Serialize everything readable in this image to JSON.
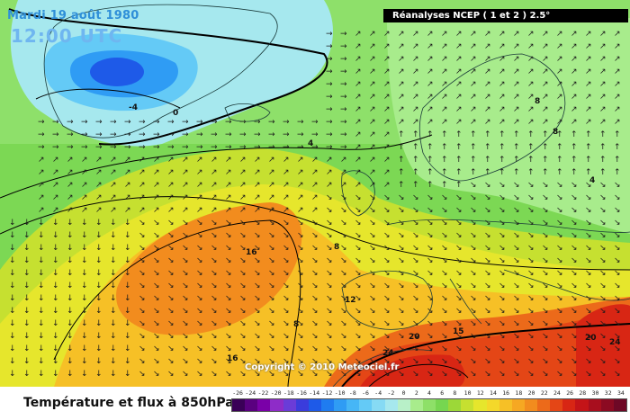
{
  "header": {
    "date": "Mardi 19 août 1980",
    "time": "12:00 UTC",
    "source": "Réanalyses NCEP ( 1 et 2 ) 2.5°"
  },
  "copyright": "Copyright © 2010 Meteociel.fr",
  "contour_labels": [
    "-4",
    "0",
    "4",
    "8",
    "16",
    "16",
    "8",
    "12",
    "20",
    "24",
    "20",
    "24",
    "8",
    "8",
    "4",
    "15",
    "16"
  ],
  "legend": {
    "title": "Température et flux à 850hPa",
    "ticks": [
      "-26",
      "-24",
      "-22",
      "-20",
      "-18",
      "-16",
      "-14",
      "-12",
      "-10",
      "-8",
      "-6",
      "-4",
      "-2",
      "0",
      "2",
      "4",
      "6",
      "8",
      "10",
      "12",
      "14",
      "16",
      "18",
      "20",
      "22",
      "24",
      "26",
      "28",
      "30",
      "32",
      "34"
    ],
    "colors": [
      "#3a0057",
      "#5a0080",
      "#7a00a8",
      "#8e2cc8",
      "#6a3cd8",
      "#3a3cdc",
      "#1e5ae8",
      "#1f7cf0",
      "#2f9cf4",
      "#46b6f6",
      "#64caf6",
      "#86daf4",
      "#a6e8ee",
      "#b8f0c8",
      "#a8ec8c",
      "#8ee068",
      "#76d650",
      "#9cd838",
      "#c6e030",
      "#e6e62c",
      "#f4d82a",
      "#f6c026",
      "#f6a822",
      "#f28c1e",
      "#ec6a1a",
      "#e44616",
      "#d82614",
      "#c41418",
      "#a80e1e",
      "#8c0a22",
      "#6e0826"
    ]
  }
}
